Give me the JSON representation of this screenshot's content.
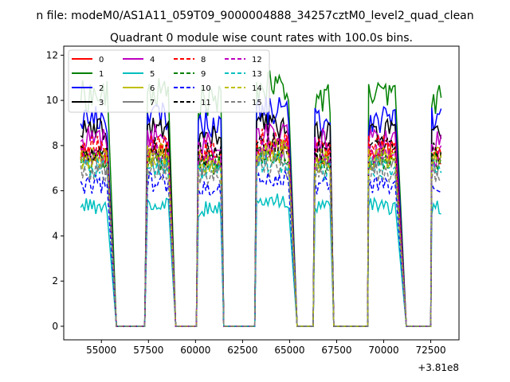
{
  "chart_data": {
    "type": "line",
    "suptitle": "n file: modeM0/AS1A11_059T09_9000004888_34257cztM0_level2_quad_clean",
    "title": "Quadrant 0 module wise count rates with 100.0s bins.",
    "xlabel": "",
    "ylabel": "",
    "x_offset_label": "+3.81e8",
    "xlim": [
      53000,
      74000
    ],
    "ylim": [
      -0.6,
      12.4
    ],
    "x_ticks": [
      55000,
      57500,
      60000,
      62500,
      65000,
      67500,
      70000,
      72500
    ],
    "x_tick_labels": [
      "55000",
      "57500",
      "60000",
      "62500",
      "65000",
      "67500",
      "70000",
      "72500"
    ],
    "y_ticks": [
      0,
      2,
      4,
      6,
      8,
      10,
      12
    ],
    "y_tick_labels": [
      "0",
      "2",
      "4",
      "6",
      "8",
      "10",
      "12"
    ],
    "grid": false,
    "legend_position": "top-left",
    "legend_columns": 4,
    "observation_windows": [
      {
        "start": 53900,
        "end": 55350,
        "base": 8.2
      },
      {
        "start": 57450,
        "end": 58550,
        "base": 8.3
      },
      {
        "start": 60150,
        "end": 61400,
        "base": 8.0
      },
      {
        "start": 63250,
        "end": 65000,
        "base": 8.5
      },
      {
        "start": 66350,
        "end": 67200,
        "base": 8.1
      },
      {
        "start": 69200,
        "end": 70600,
        "base": 8.2
      },
      {
        "start": 72550,
        "end": 73100,
        "base": 8.1
      }
    ],
    "gaps_x": [
      [
        55800,
        57300
      ],
      [
        58950,
        60050
      ],
      [
        61500,
        63150
      ],
      [
        65400,
        66250
      ],
      [
        67350,
        69150
      ],
      [
        71200,
        72500
      ]
    ],
    "gap_value": 0,
    "series": [
      {
        "name": "0",
        "color": "#ff0000",
        "style": "solid",
        "level": 7.7
      },
      {
        "name": "1",
        "color": "#008000",
        "style": "solid",
        "level": 10.2
      },
      {
        "name": "2",
        "color": "#0000ff",
        "style": "solid",
        "level": 9.2
      },
      {
        "name": "3",
        "color": "#000000",
        "style": "solid",
        "level": 8.6
      },
      {
        "name": "4",
        "color": "#bf00bf",
        "style": "solid",
        "level": 8.3
      },
      {
        "name": "5",
        "color": "#00bfbf",
        "style": "solid",
        "level": 5.3
      },
      {
        "name": "6",
        "color": "#bfbf00",
        "style": "solid",
        "level": 7.5
      },
      {
        "name": "7",
        "color": "#808080",
        "style": "solid",
        "level": 7.2
      },
      {
        "name": "8",
        "color": "#ff0000",
        "style": "dashed",
        "level": 7.9
      },
      {
        "name": "9",
        "color": "#008000",
        "style": "dashed",
        "level": 7.3
      },
      {
        "name": "10",
        "color": "#0000ff",
        "style": "dashed",
        "level": 6.3
      },
      {
        "name": "11",
        "color": "#000000",
        "style": "dashed",
        "level": 7.8
      },
      {
        "name": "12",
        "color": "#bf00bf",
        "style": "dashed",
        "level": 7.6
      },
      {
        "name": "13",
        "color": "#00bfbf",
        "style": "dashed",
        "level": 7.0
      },
      {
        "name": "14",
        "color": "#bfbf00",
        "style": "dashed",
        "level": 7.4
      },
      {
        "name": "15",
        "color": "#808080",
        "style": "dashed",
        "level": 6.8
      }
    ]
  }
}
